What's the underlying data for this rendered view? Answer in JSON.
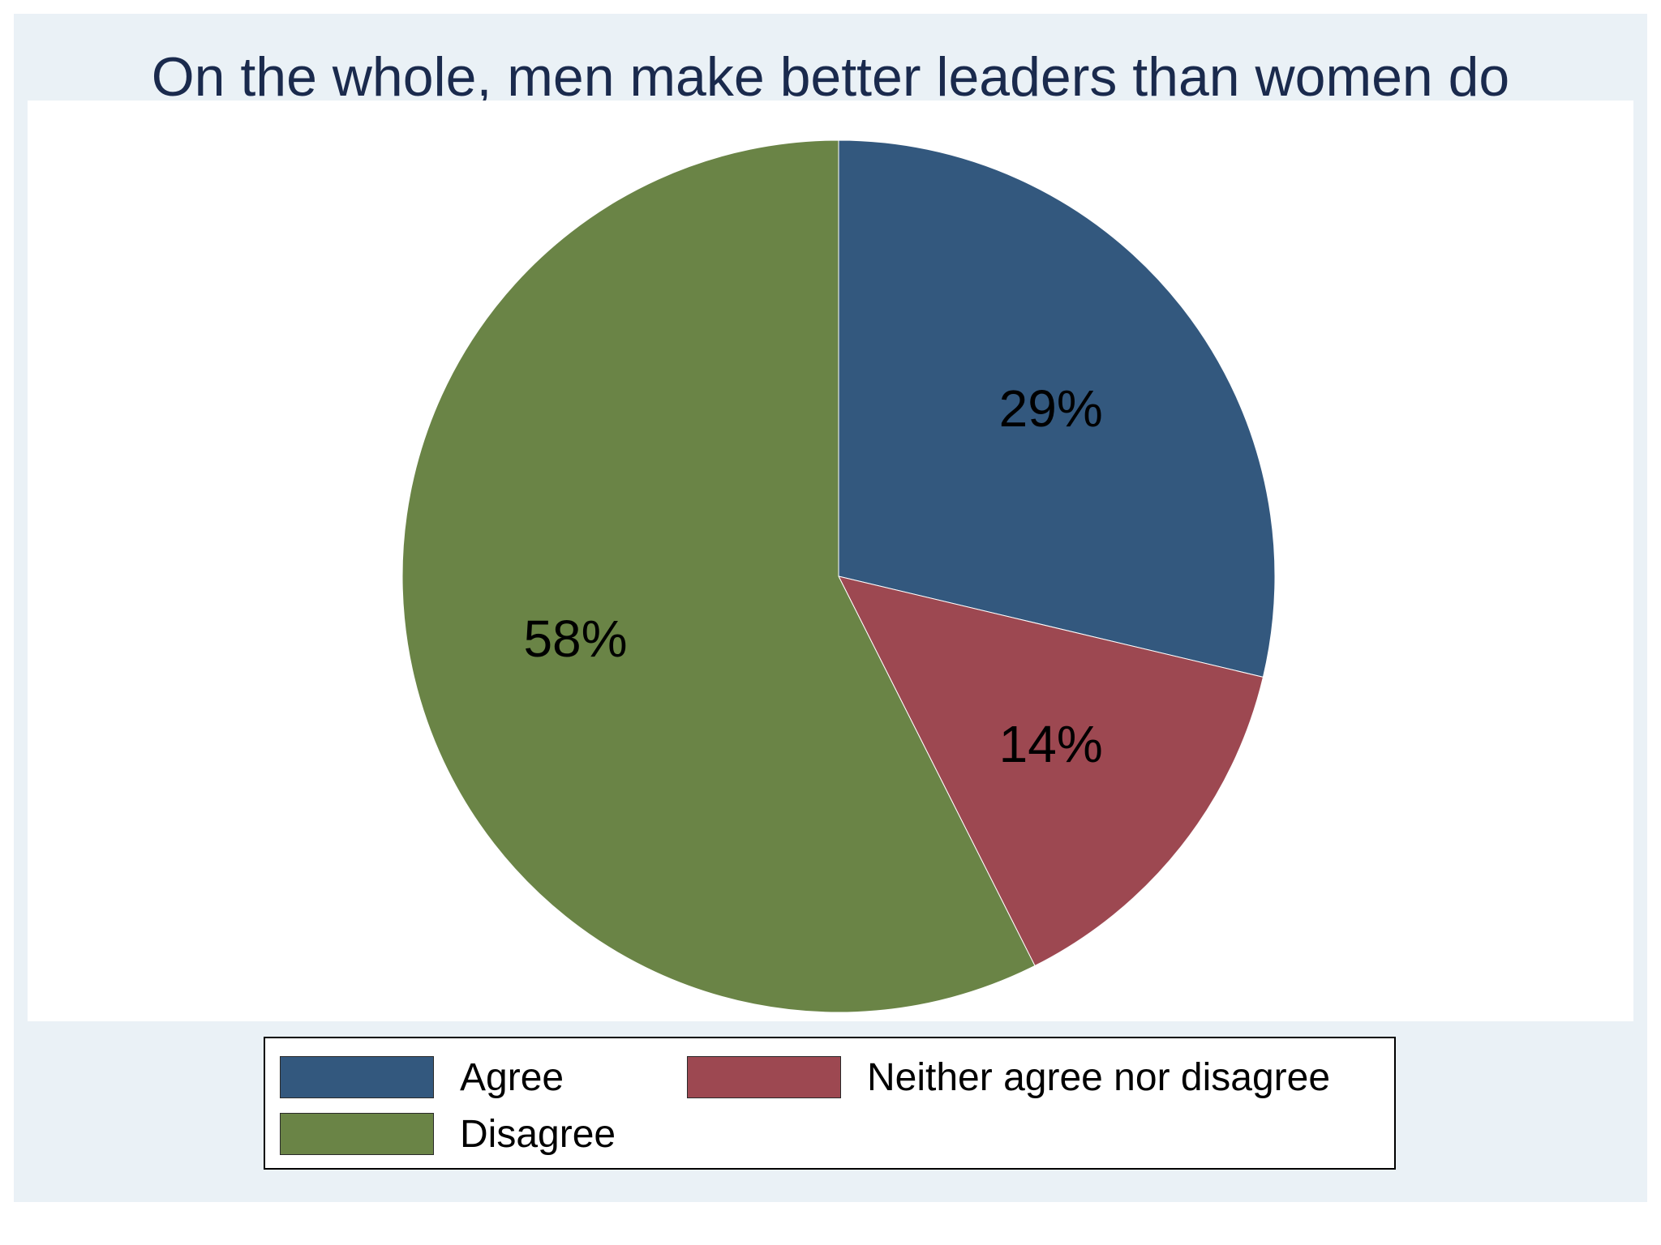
{
  "chart_data": {
    "type": "pie",
    "title": "On the whole, men make better leaders than women do",
    "categories": [
      "Agree",
      "Neither agree nor disagree",
      "Disagree"
    ],
    "values": [
      29,
      14,
      58
    ],
    "value_labels": [
      "29%",
      "14%",
      "58%"
    ],
    "colors": [
      "#33587e",
      "#9d4851",
      "#6a8446"
    ],
    "start_angle_deg": 90,
    "direction": "clockwise",
    "legend": {
      "placement": "bottom",
      "columns": 2,
      "items": [
        {
          "label": "Agree",
          "color": "#33587e"
        },
        {
          "label": "Neither agree nor disagree",
          "color": "#9d4851"
        },
        {
          "label": "Disagree",
          "color": "#6a8446"
        }
      ]
    }
  },
  "colors": {
    "background": "#eaf1f6",
    "plot_background": "#ffffff",
    "title": "#1a2a4d"
  }
}
